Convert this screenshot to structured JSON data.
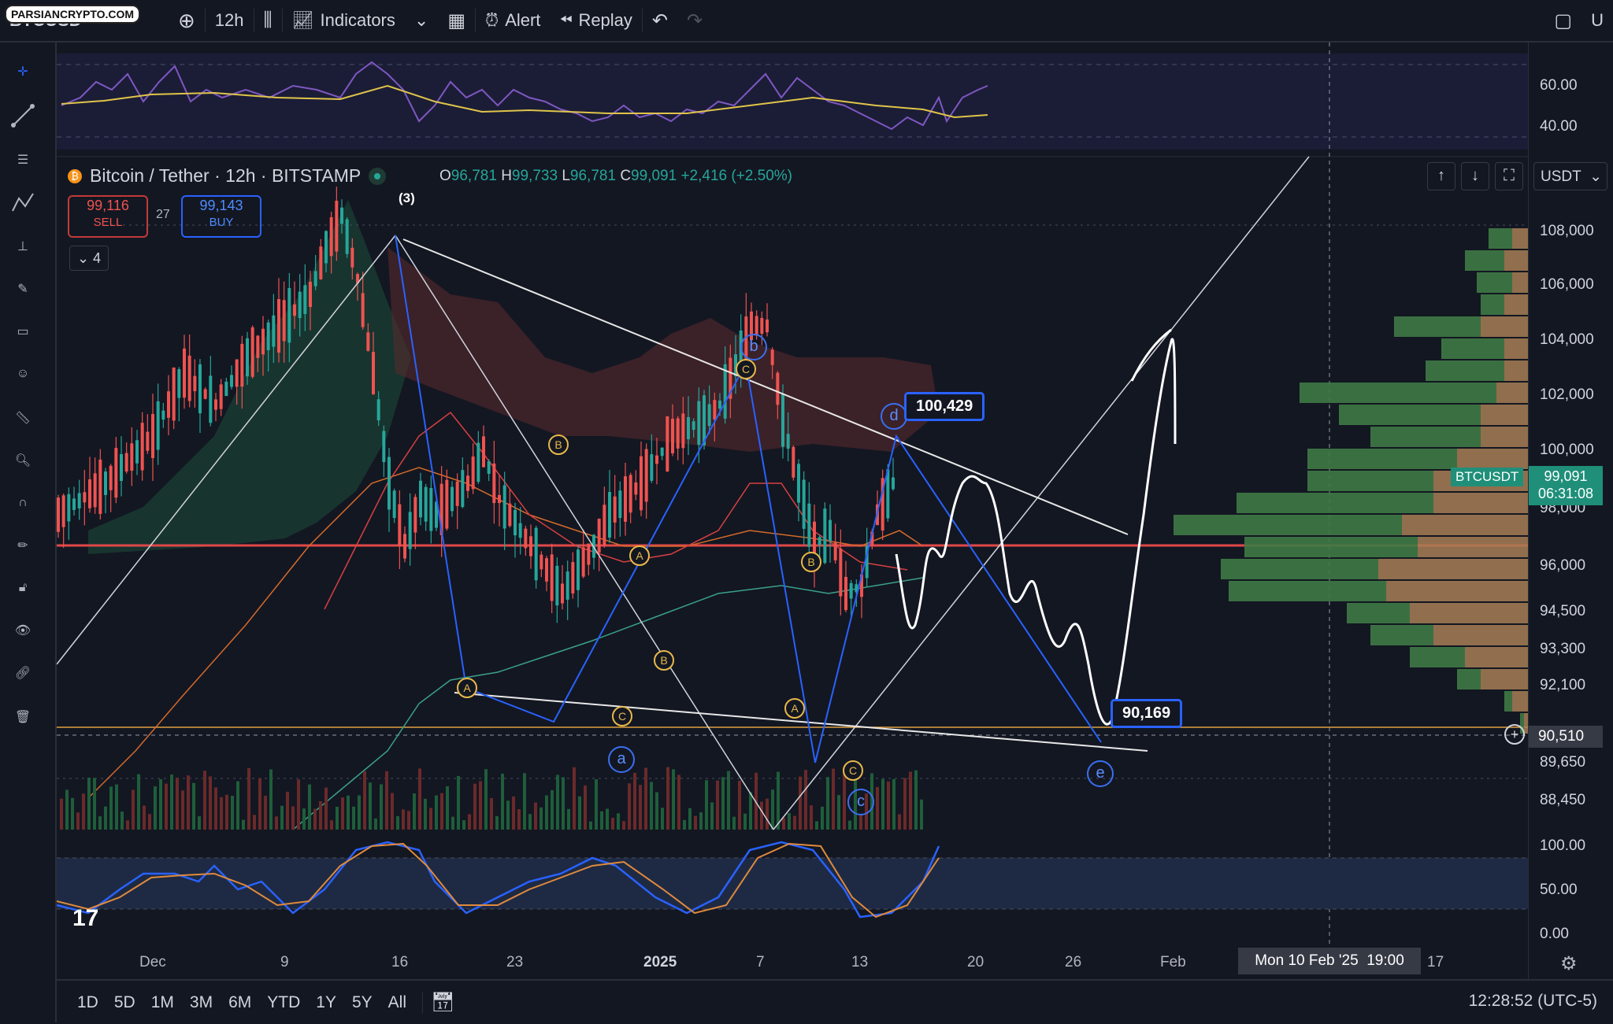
{
  "watermark": "PARSIANCRYPTO.COM",
  "toolbar": {
    "symbol": "BTCUSD",
    "interval": "12h",
    "indicators": "Indicators",
    "alert": "Alert",
    "replay": "Replay",
    "right_label": "U"
  },
  "legend": {
    "title": "Bitcoin / Tether · 12h · BITSTAMP",
    "o_label": "O",
    "o": "96,781",
    "h_label": "H",
    "h": "99,733",
    "l_label": "L",
    "l": "96,781",
    "c_label": "C",
    "c": "99,091",
    "change": "+2,416 (+2.50%)"
  },
  "trade": {
    "sell_price": "99,116",
    "sell_label": "SELL",
    "spread": "27",
    "buy_price": "99,143",
    "buy_label": "BUY"
  },
  "collapse_count": "4",
  "currency": "USDT",
  "price_axis": [
    "108,000",
    "106,000",
    "104,000",
    "102,000",
    "100,000",
    "98,000",
    "96,000",
    "94,500",
    "93,300",
    "92,100",
    "89,650",
    "88,450"
  ],
  "rsi_axis": [
    "60.00",
    "40.00"
  ],
  "stoch_axis": [
    "100.00",
    "50.00",
    "0.00"
  ],
  "last_price": {
    "symbol": "BTCUSDT",
    "price": "99,091",
    "countdown": "06:31:08"
  },
  "crosshair_price": "90,510",
  "time_axis": [
    "Dec",
    "9",
    "16",
    "23",
    "2025",
    "7",
    "13",
    "20",
    "26",
    "Feb",
    "17"
  ],
  "crosshair_time": "Mon 10 Feb '25",
  "crosshair_hour": "19:00",
  "boxes": {
    "target_high": "100,429",
    "target_low": "90,169"
  },
  "wave_labels": {
    "three": "(3)",
    "a": "a",
    "b": "b",
    "c": "c",
    "d": "d",
    "e": "e"
  },
  "sub_labels": [
    "A",
    "B",
    "C"
  ],
  "ranges": [
    "1D",
    "5D",
    "1M",
    "3M",
    "6M",
    "YTD",
    "1Y",
    "5Y",
    "All"
  ],
  "clock": "12:28:52 (UTC-5)",
  "colors": {
    "bg": "#131722",
    "up": "#26a69a",
    "down": "#ef5350",
    "wave": "#2962ff",
    "sub": "#e8b84a"
  }
}
